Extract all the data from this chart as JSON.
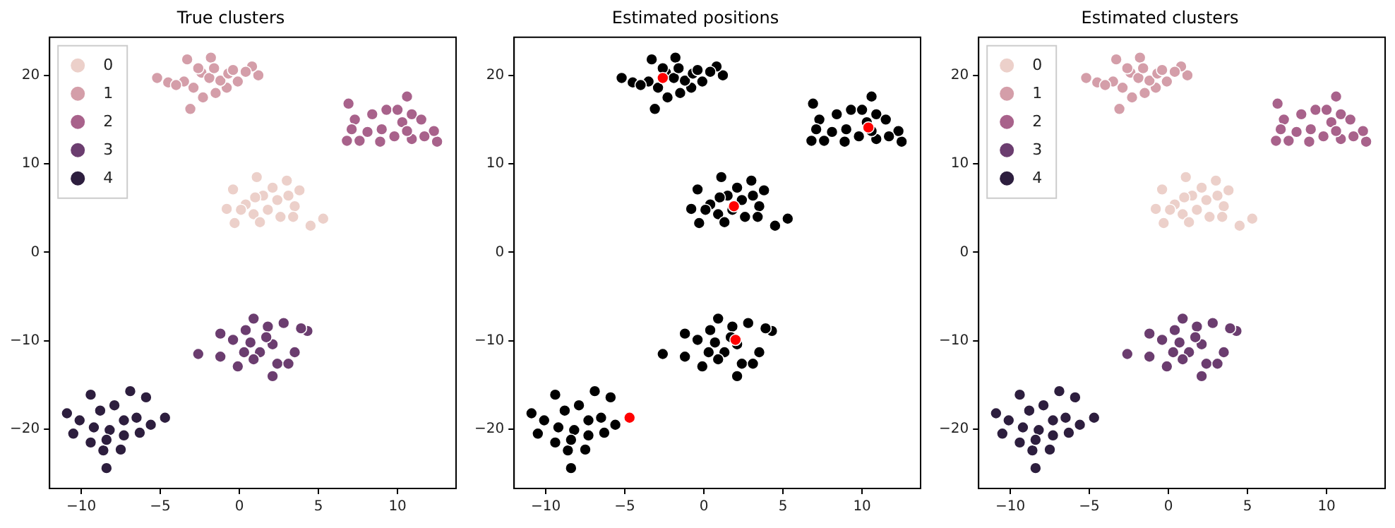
{
  "chart_data": [
    {
      "type": "scatter",
      "title": "True clusters",
      "xlim": [
        -12,
        13.7
      ],
      "ylim": [
        -26.7,
        24.3
      ],
      "xticks": [
        -10,
        -5,
        0,
        5,
        10
      ],
      "yticks": [
        -20,
        -10,
        0,
        10,
        20
      ],
      "legend": "top left",
      "marker": "circle",
      "series": [
        {
          "name": "0",
          "color": "#ecd0ca",
          "x": [
            1.1,
            4.5,
            5.3,
            -0.4,
            -0.8,
            -0.3,
            3.0,
            3.8,
            3.5,
            2.6,
            1.5,
            0.4,
            2.1,
            0.9,
            1.8,
            3.4,
            1.3,
            0.1,
            2.4,
            1.0,
            3.1
          ],
          "values": [
            8.5,
            3.0,
            3.8,
            7.1,
            4.9,
            3.3,
            8.1,
            7.0,
            5.2,
            4.0,
            6.4,
            5.4,
            7.3,
            4.3,
            4.8,
            4.0,
            3.4,
            4.8,
            5.9,
            6.2,
            6.4
          ]
        },
        {
          "name": "1",
          "color": "#d49ea9",
          "x": [
            -5.2,
            -3.1,
            -1.8,
            1.2,
            0.8,
            -3.3,
            -4.5,
            -2.3,
            -1.5,
            -0.8,
            -0.1,
            0.4,
            -2.9,
            -3.5,
            -2.4,
            -1.9,
            -1.2,
            -0.7,
            -1.6,
            -2.6,
            -4.0,
            -0.4
          ],
          "values": [
            19.7,
            16.2,
            22.0,
            20.0,
            21.0,
            21.8,
            19.2,
            17.5,
            18.0,
            18.6,
            19.3,
            20.4,
            18.6,
            19.3,
            20.3,
            19.7,
            19.4,
            20.2,
            20.8,
            20.8,
            18.9,
            20.6
          ]
        },
        {
          "name": "2",
          "color": "#a8628b",
          "x": [
            6.9,
            6.8,
            10.6,
            12.5,
            12.3,
            7.6,
            8.4,
            9.3,
            10.3,
            10.9,
            11.5,
            9.0,
            9.8,
            10.9,
            11.7,
            8.1,
            7.3,
            8.9,
            10.0,
            10.6,
            7.1
          ],
          "values": [
            16.8,
            12.6,
            17.6,
            12.5,
            13.7,
            12.6,
            15.6,
            16.1,
            14.7,
            15.6,
            15.0,
            13.9,
            13.1,
            12.8,
            13.1,
            13.6,
            15.0,
            12.5,
            16.1,
            13.7,
            13.9
          ]
        },
        {
          "name": "3",
          "color": "#6b3d6f",
          "x": [
            0.9,
            -2.6,
            2.1,
            2.8,
            4.3,
            3.9,
            -1.2,
            -1.2,
            -0.1,
            0.4,
            1.8,
            -0.4,
            0.7,
            1.3,
            2.4,
            3.1,
            3.5,
            0.3,
            2.1,
            1.7,
            0.9
          ],
          "values": [
            -7.5,
            -11.5,
            -14.0,
            -8.0,
            -8.9,
            -8.6,
            -9.2,
            -11.8,
            -12.9,
            -8.8,
            -8.4,
            -9.9,
            -10.2,
            -11.3,
            -12.6,
            -12.6,
            -11.3,
            -11.3,
            -10.4,
            -9.6,
            -12.1
          ]
        },
        {
          "name": "4",
          "color": "#2d1e3e",
          "x": [
            -8.4,
            -10.9,
            -10.5,
            -9.4,
            -6.9,
            -5.9,
            -4.7,
            -5.6,
            -7.5,
            -8.6,
            -9.4,
            -10.1,
            -8.8,
            -7.9,
            -7.3,
            -6.5,
            -6.3,
            -8.2,
            -9.2,
            -7.3,
            -8.4
          ],
          "values": [
            -24.4,
            -18.2,
            -20.5,
            -16.1,
            -15.7,
            -16.4,
            -18.7,
            -19.5,
            -22.3,
            -22.4,
            -21.5,
            -19.0,
            -17.9,
            -17.3,
            -19.0,
            -18.7,
            -20.4,
            -20.1,
            -19.8,
            -20.7,
            -21.2
          ]
        }
      ]
    },
    {
      "type": "scatter",
      "title": "Estimated positions",
      "xlim": [
        -12,
        13.7
      ],
      "ylim": [
        -26.7,
        24.3
      ],
      "xticks": [
        -10,
        -5,
        0,
        5,
        10
      ],
      "yticks": [
        -20,
        -10,
        0,
        10,
        20
      ],
      "marker": "circle",
      "series": [
        {
          "color": "#000000",
          "x": [
            1.1,
            4.5,
            5.3,
            -0.4,
            -0.8,
            -0.3,
            3.0,
            3.8,
            3.5,
            2.6,
            1.5,
            0.4,
            2.1,
            0.9,
            1.8,
            3.4,
            1.3,
            0.1,
            2.4,
            1.0,
            3.1,
            -5.2,
            -3.1,
            -1.8,
            1.2,
            0.8,
            -3.3,
            -4.5,
            -2.3,
            -1.5,
            -0.8,
            -0.1,
            0.4,
            -2.9,
            -3.5,
            -2.4,
            -1.9,
            -1.2,
            -0.7,
            -1.6,
            -2.6,
            -4.0,
            -0.4,
            6.9,
            6.8,
            10.6,
            12.5,
            12.3,
            7.6,
            8.4,
            9.3,
            10.3,
            10.9,
            11.5,
            9.0,
            9.8,
            10.9,
            11.7,
            8.1,
            7.3,
            8.9,
            10.0,
            10.6,
            7.1,
            0.9,
            -2.6,
            2.1,
            2.8,
            4.3,
            3.9,
            -1.2,
            -1.2,
            -0.1,
            0.4,
            1.8,
            -0.4,
            0.7,
            1.3,
            2.4,
            3.1,
            3.5,
            0.3,
            2.1,
            1.7,
            0.9,
            -8.4,
            -10.9,
            -10.5,
            -9.4,
            -6.9,
            -5.9,
            -5.6,
            -7.5,
            -8.6,
            -9.4,
            -10.1,
            -8.8,
            -7.9,
            -7.3,
            -6.5,
            -6.3,
            -8.2,
            -9.2,
            -7.3,
            -8.4
          ],
          "values": [
            8.5,
            3.0,
            3.8,
            7.1,
            4.9,
            3.3,
            8.1,
            7.0,
            5.2,
            4.0,
            6.4,
            5.4,
            7.3,
            4.3,
            4.8,
            4.0,
            3.4,
            4.8,
            5.9,
            6.2,
            6.4,
            19.7,
            16.2,
            22.0,
            20.0,
            21.0,
            21.8,
            19.2,
            17.5,
            18.0,
            18.6,
            19.3,
            20.4,
            18.6,
            19.3,
            20.3,
            19.7,
            19.4,
            20.2,
            20.8,
            20.8,
            18.9,
            20.6,
            16.8,
            12.6,
            17.6,
            12.5,
            13.7,
            12.6,
            15.6,
            16.1,
            14.7,
            15.6,
            15.0,
            13.9,
            13.1,
            12.8,
            13.1,
            13.6,
            15.0,
            12.5,
            16.1,
            13.7,
            13.9,
            -7.5,
            -11.5,
            -14.0,
            -8.0,
            -8.9,
            -8.6,
            -9.2,
            -11.8,
            -12.9,
            -8.8,
            -8.4,
            -9.9,
            -10.2,
            -11.3,
            -12.6,
            -12.6,
            -11.3,
            -11.3,
            -10.4,
            -9.6,
            -12.1,
            -24.4,
            -18.2,
            -20.5,
            -16.1,
            -15.7,
            -16.4,
            -19.5,
            -22.3,
            -22.4,
            -21.5,
            -19.0,
            -17.9,
            -17.3,
            -19.0,
            -18.7,
            -20.4,
            -20.1,
            -19.8,
            -20.7,
            -21.2
          ]
        },
        {
          "color": "#ff0000",
          "x": [
            -2.6,
            10.4,
            1.9,
            2.0,
            -4.7
          ],
          "values": [
            19.7,
            14.1,
            5.2,
            -9.9,
            -18.7
          ]
        }
      ]
    },
    {
      "type": "scatter",
      "title": "Estimated clusters",
      "xlim": [
        -12,
        13.7
      ],
      "ylim": [
        -26.7,
        24.3
      ],
      "xticks": [
        -10,
        -5,
        0,
        5,
        10
      ],
      "yticks": [
        -20,
        -10,
        0,
        10,
        20
      ],
      "legend": "top left",
      "marker": "circle",
      "series": [
        {
          "name": "0",
          "color": "#ecd0ca",
          "x": [
            1.1,
            4.5,
            5.3,
            -0.4,
            -0.8,
            -0.3,
            3.0,
            3.8,
            3.5,
            2.6,
            1.5,
            0.4,
            2.1,
            0.9,
            1.8,
            3.4,
            1.3,
            0.1,
            2.4,
            1.0,
            3.1
          ],
          "values": [
            8.5,
            3.0,
            3.8,
            7.1,
            4.9,
            3.3,
            8.1,
            7.0,
            5.2,
            4.0,
            6.4,
            5.4,
            7.3,
            4.3,
            4.8,
            4.0,
            3.4,
            4.8,
            5.9,
            6.2,
            6.4
          ]
        },
        {
          "name": "1",
          "color": "#d49ea9",
          "x": [
            -5.2,
            -3.1,
            -1.8,
            1.2,
            0.8,
            -3.3,
            -4.5,
            -2.3,
            -1.5,
            -0.8,
            -0.1,
            0.4,
            -2.9,
            -3.5,
            -2.4,
            -1.9,
            -1.2,
            -0.7,
            -1.6,
            -2.6,
            -4.0,
            -0.4
          ],
          "values": [
            19.7,
            16.2,
            22.0,
            20.0,
            21.0,
            21.8,
            19.2,
            17.5,
            18.0,
            18.6,
            19.3,
            20.4,
            18.6,
            19.3,
            20.3,
            19.7,
            19.4,
            20.2,
            20.8,
            20.8,
            18.9,
            20.6
          ]
        },
        {
          "name": "2",
          "color": "#a8628b",
          "x": [
            6.9,
            6.8,
            10.6,
            12.5,
            12.3,
            7.6,
            8.4,
            9.3,
            10.3,
            10.9,
            11.5,
            9.0,
            9.8,
            10.9,
            11.7,
            8.1,
            7.3,
            8.9,
            10.0,
            10.6,
            7.1
          ],
          "values": [
            16.8,
            12.6,
            17.6,
            12.5,
            13.7,
            12.6,
            15.6,
            16.1,
            14.7,
            15.6,
            15.0,
            13.9,
            13.1,
            12.8,
            13.1,
            13.6,
            15.0,
            12.5,
            16.1,
            13.7,
            13.9
          ]
        },
        {
          "name": "3",
          "color": "#6b3d6f",
          "x": [
            0.9,
            -2.6,
            2.1,
            2.8,
            4.3,
            3.9,
            -1.2,
            -1.2,
            -0.1,
            0.4,
            1.8,
            -0.4,
            0.7,
            1.3,
            2.4,
            3.1,
            3.5,
            0.3,
            2.1,
            1.7,
            0.9
          ],
          "values": [
            -7.5,
            -11.5,
            -14.0,
            -8.0,
            -8.9,
            -8.6,
            -9.2,
            -11.8,
            -12.9,
            -8.8,
            -8.4,
            -9.9,
            -10.2,
            -11.3,
            -12.6,
            -12.6,
            -11.3,
            -11.3,
            -10.4,
            -9.6,
            -12.1
          ]
        },
        {
          "name": "4",
          "color": "#2d1e3e",
          "x": [
            -8.4,
            -10.9,
            -10.5,
            -9.4,
            -6.9,
            -5.9,
            -4.7,
            -5.6,
            -7.5,
            -8.6,
            -9.4,
            -10.1,
            -8.8,
            -7.9,
            -7.3,
            -6.5,
            -6.3,
            -8.2,
            -9.2,
            -7.3,
            -8.4
          ],
          "values": [
            -24.4,
            -18.2,
            -20.5,
            -16.1,
            -15.7,
            -16.4,
            -18.7,
            -19.5,
            -22.3,
            -22.4,
            -21.5,
            -19.0,
            -17.9,
            -17.3,
            -19.0,
            -18.7,
            -20.4,
            -20.1,
            -19.8,
            -20.7,
            -21.2
          ]
        }
      ]
    }
  ]
}
